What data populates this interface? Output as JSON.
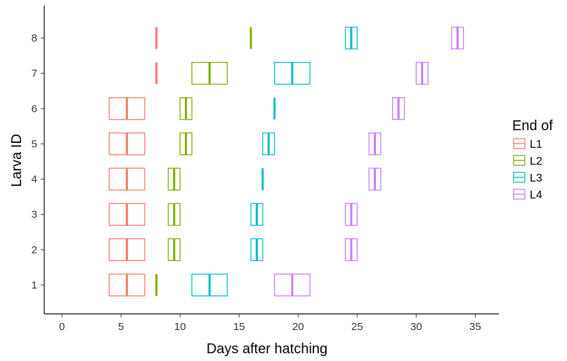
{
  "chart_data": {
    "type": "boxplot",
    "xlabel": "Days after hatching",
    "ylabel": "Larva ID",
    "xlim": [
      -1.5,
      37
    ],
    "xticks": [
      0,
      5,
      10,
      15,
      20,
      25,
      30,
      35
    ],
    "categories": [
      "1",
      "2",
      "3",
      "4",
      "5",
      "6",
      "7",
      "8"
    ],
    "grid": false,
    "legend": {
      "title": "End of",
      "placement": "right",
      "entries": [
        "L1",
        "L2",
        "L3",
        "L4"
      ]
    },
    "series": [
      {
        "name": "L1",
        "color": "#f8766d",
        "boxes": [
          {
            "id": "1",
            "lower": 4,
            "median": 5.5,
            "upper": 7
          },
          {
            "id": "2",
            "lower": 4,
            "median": 5.5,
            "upper": 7
          },
          {
            "id": "3",
            "lower": 4,
            "median": 5.5,
            "upper": 7
          },
          {
            "id": "4",
            "lower": 4,
            "median": 5.5,
            "upper": 7
          },
          {
            "id": "5",
            "lower": 4,
            "median": 5.5,
            "upper": 7
          },
          {
            "id": "6",
            "lower": 4,
            "median": 5.5,
            "upper": 7
          },
          {
            "id": "7",
            "lower": 8,
            "median": 8,
            "upper": 8
          },
          {
            "id": "8",
            "lower": 8,
            "median": 8,
            "upper": 8
          }
        ]
      },
      {
        "name": "L2",
        "color": "#7cae00",
        "boxes": [
          {
            "id": "1",
            "lower": 8,
            "median": 8,
            "upper": 8
          },
          {
            "id": "2",
            "lower": 9,
            "median": 9.5,
            "upper": 10
          },
          {
            "id": "3",
            "lower": 9,
            "median": 9.5,
            "upper": 10
          },
          {
            "id": "4",
            "lower": 9,
            "median": 9.5,
            "upper": 10
          },
          {
            "id": "5",
            "lower": 10,
            "median": 10.5,
            "upper": 11
          },
          {
            "id": "6",
            "lower": 10,
            "median": 10.5,
            "upper": 11
          },
          {
            "id": "7",
            "lower": 11,
            "median": 12.5,
            "upper": 14
          },
          {
            "id": "8",
            "lower": 16,
            "median": 16,
            "upper": 16
          }
        ]
      },
      {
        "name": "L3",
        "color": "#00bfc4",
        "boxes": [
          {
            "id": "1",
            "lower": 11,
            "median": 12.5,
            "upper": 14
          },
          {
            "id": "2",
            "lower": 16,
            "median": 16.5,
            "upper": 17
          },
          {
            "id": "3",
            "lower": 16,
            "median": 16.5,
            "upper": 17
          },
          {
            "id": "4",
            "lower": 17,
            "median": 17,
            "upper": 17
          },
          {
            "id": "5",
            "lower": 17,
            "median": 17.5,
            "upper": 18
          },
          {
            "id": "6",
            "lower": 18,
            "median": 18,
            "upper": 18
          },
          {
            "id": "7",
            "lower": 18,
            "median": 19.5,
            "upper": 21
          },
          {
            "id": "8",
            "lower": 24,
            "median": 24.5,
            "upper": 25
          }
        ]
      },
      {
        "name": "L4",
        "color": "#c77cff",
        "boxes": [
          {
            "id": "1",
            "lower": 18,
            "median": 19.5,
            "upper": 21
          },
          {
            "id": "2",
            "lower": 24,
            "median": 24.5,
            "upper": 25
          },
          {
            "id": "3",
            "lower": 24,
            "median": 24.5,
            "upper": 25
          },
          {
            "id": "4",
            "lower": 26,
            "median": 26.5,
            "upper": 27
          },
          {
            "id": "5",
            "lower": 26,
            "median": 26.5,
            "upper": 27
          },
          {
            "id": "6",
            "lower": 28,
            "median": 28.5,
            "upper": 29
          },
          {
            "id": "7",
            "lower": 30,
            "median": 30.5,
            "upper": 31
          },
          {
            "id": "8",
            "lower": 33,
            "median": 33.5,
            "upper": 34
          }
        ]
      }
    ]
  }
}
